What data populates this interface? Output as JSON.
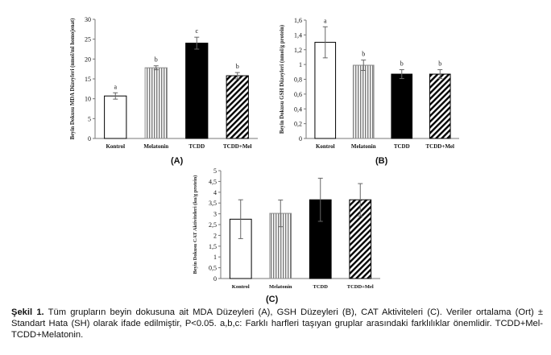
{
  "chart_data": [
    {
      "type": "bar",
      "ylabel": "Beyin Dokusu MDA Düzeyleri (nmol/ml homojenat)",
      "categories": [
        "Kontrol",
        "Melatonin",
        "TCDD",
        "TCDD+Mel"
      ],
      "values": [
        10.7,
        17.8,
        24.0,
        15.8
      ],
      "errors": [
        0.8,
        0.5,
        1.5,
        0.8
      ],
      "significance": [
        "a",
        "b",
        "c",
        "b"
      ],
      "ylim": [
        0,
        30
      ],
      "yticks": [
        "0",
        "5",
        "10",
        "15",
        "20",
        "25",
        "30"
      ],
      "panel": "(A)",
      "fills": [
        "white",
        "vertical-stripes",
        "black",
        "diagonal-stripes"
      ]
    },
    {
      "type": "bar",
      "ylabel": "Beyin Dokusu GSH Düzeyleri (nmol/g protein)",
      "categories": [
        "Kontrol",
        "Melatonin",
        "TCDD",
        "TCDD+Mel"
      ],
      "values": [
        1.3,
        0.99,
        0.87,
        0.87
      ],
      "errors": [
        0.21,
        0.07,
        0.06,
        0.06
      ],
      "significance": [
        "a",
        "b",
        "b",
        "b"
      ],
      "ylim": [
        0,
        1.6
      ],
      "yticks": [
        "0",
        "0,2",
        "0,4",
        "0,6",
        "0,8",
        "1",
        "1,2",
        "1,4",
        "1,6"
      ],
      "panel": "(B)",
      "fills": [
        "white",
        "vertical-stripes",
        "black",
        "diagonal-stripes"
      ]
    },
    {
      "type": "bar",
      "ylabel": "Beyin Dokusu CAT Aktiviteleri (ku/g protein)",
      "categories": [
        "Kontrol",
        "Melatonin",
        "TCDD",
        "TCDD+Mel"
      ],
      "values": [
        2.75,
        3.02,
        3.65,
        3.65
      ],
      "errors": [
        0.9,
        0.62,
        1.0,
        0.75
      ],
      "significance": [
        "",
        "",
        "",
        ""
      ],
      "ylim": [
        0,
        5
      ],
      "yticks": [
        "0",
        "0,5",
        "1",
        "1,5",
        "2",
        "2,5",
        "3",
        "3,5",
        "4",
        "4,5",
        "5"
      ],
      "panel": "(C)",
      "fills": [
        "white",
        "vertical-stripes",
        "black",
        "diagonal-stripes"
      ]
    }
  ],
  "caption": {
    "bold": "Şekil 1.",
    "text": " Tüm grupların beyin dokusuna ait MDA Düzeyleri (A), GSH Düzeyleri (B), CAT Aktiviteleri (C). Veriler ortalama (Ort) ± Standart Hata (SH) olarak ifade edilmiştir, P<0.05. a,b,c: Farklı harfleri taşıyan gruplar arasındaki farklılıklar önemlidir. TCDD+Mel- TCDD+Melatonin."
  }
}
